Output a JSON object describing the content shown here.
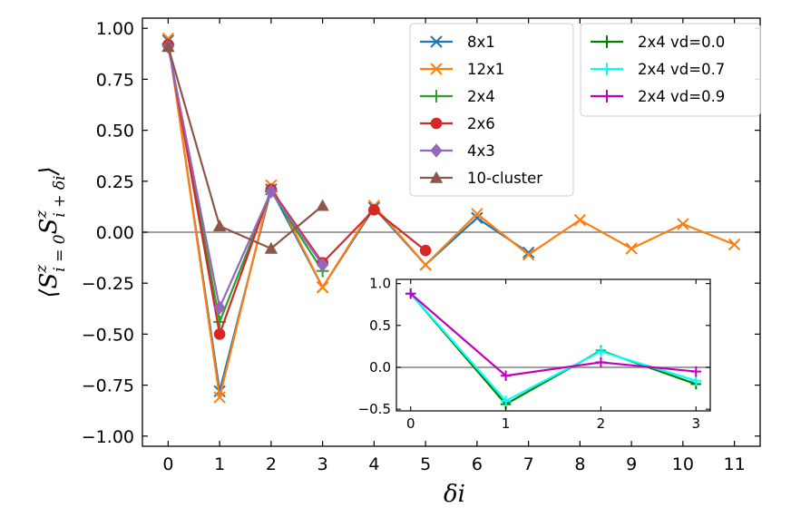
{
  "chart_data": [
    {
      "type": "line",
      "role": "main",
      "xlabel": "δi",
      "ylabel_parts": {
        "open": "⟨",
        "S": "S",
        "sup": "z",
        "sub1": "i = 0",
        "sub2": "i + δi",
        "close": "⟩"
      },
      "xlim": [
        -0.5,
        11.5
      ],
      "ylim": [
        -1.05,
        1.05
      ],
      "xticks": [
        0,
        1,
        2,
        3,
        4,
        5,
        6,
        7,
        8,
        9,
        10,
        11
      ],
      "yticks": [
        -1.0,
        -0.75,
        -0.5,
        -0.25,
        0.0,
        0.25,
        0.5,
        0.75,
        1.0
      ],
      "ytick_labels": [
        "−1.00",
        "−0.75",
        "−0.50",
        "−0.25",
        "0.00",
        "0.25",
        "0.50",
        "0.75",
        "1.00"
      ],
      "hline": 0,
      "series": [
        {
          "name": "8x1",
          "color": "#1f77b4",
          "marker": "x",
          "x": [
            0,
            1,
            2,
            3,
            4,
            5,
            6,
            7
          ],
          "y": [
            0.94,
            -0.78,
            0.21,
            -0.27,
            0.12,
            -0.16,
            0.07,
            -0.1
          ]
        },
        {
          "name": "12x1",
          "color": "#ff7f0e",
          "marker": "x",
          "x": [
            0,
            1,
            2,
            3,
            4,
            5,
            6,
            7,
            8,
            9,
            10,
            11
          ],
          "y": [
            0.95,
            -0.81,
            0.23,
            -0.27,
            0.13,
            -0.16,
            0.09,
            -0.11,
            0.06,
            -0.08,
            0.04,
            -0.06
          ]
        },
        {
          "name": "2x4",
          "color": "#2ca02c",
          "marker": "+",
          "x": [
            0,
            1,
            2,
            3
          ],
          "y": [
            0.92,
            -0.44,
            0.2,
            -0.19
          ]
        },
        {
          "name": "2x6",
          "color": "#d62728",
          "marker": "o",
          "x": [
            0,
            1,
            2,
            3,
            4,
            5
          ],
          "y": [
            0.92,
            -0.5,
            0.21,
            -0.15,
            0.11,
            -0.09
          ]
        },
        {
          "name": "4x3",
          "color": "#9467bd",
          "marker": "D",
          "x": [
            0,
            1,
            2,
            3
          ],
          "y": [
            0.91,
            -0.37,
            0.2,
            -0.16
          ]
        },
        {
          "name": "10-cluster",
          "color": "#8c564b",
          "marker": "^",
          "x": [
            0,
            1,
            2,
            3
          ],
          "y": [
            0.91,
            0.03,
            -0.08,
            0.13
          ]
        }
      ],
      "legend": {
        "placement": "top-right"
      }
    },
    {
      "type": "line",
      "role": "inset",
      "xlim": [
        -0.15,
        3.15
      ],
      "ylim": [
        -0.52,
        1.05
      ],
      "xticks": [
        0,
        1,
        2,
        3
      ],
      "yticks": [
        -0.5,
        0.0,
        0.5,
        1.0
      ],
      "ytick_labels": [
        "−0.5",
        "0.0",
        "0.5",
        "1.0"
      ],
      "hline": 0,
      "series": [
        {
          "name": "2x4 vd=0.0",
          "color": "#008000",
          "marker": "+",
          "x": [
            0,
            1,
            2,
            3
          ],
          "y": [
            0.88,
            -0.44,
            0.2,
            -0.2
          ]
        },
        {
          "name": "2x4 vd=0.7",
          "color": "#00ffff",
          "marker": "+",
          "x": [
            0,
            1,
            2,
            3
          ],
          "y": [
            0.88,
            -0.4,
            0.19,
            -0.16
          ]
        },
        {
          "name": "2x4 vd=0.9",
          "color": "#bf00bf",
          "marker": "+",
          "x": [
            0,
            1,
            2,
            3
          ],
          "y": [
            0.88,
            -0.1,
            0.06,
            -0.05
          ]
        }
      ]
    }
  ]
}
